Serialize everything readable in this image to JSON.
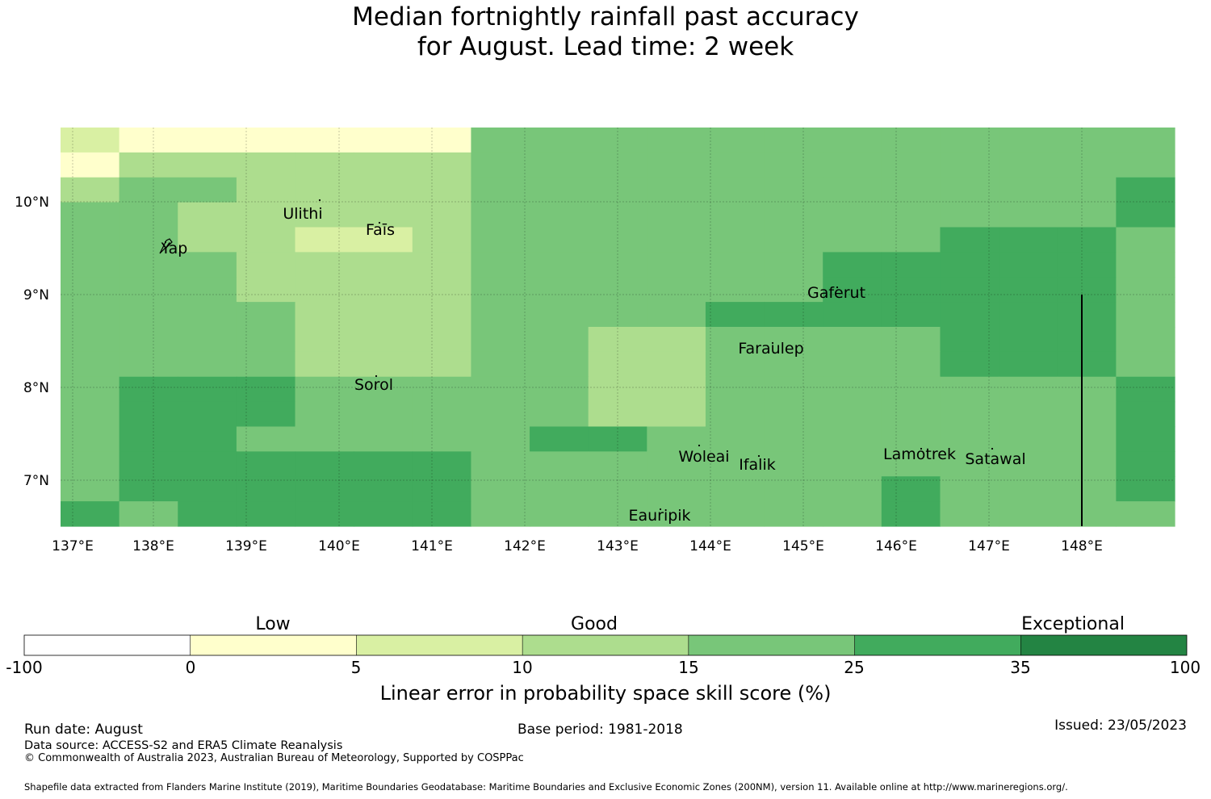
{
  "title_line1": "Median fortnightly rainfall past accuracy",
  "title_line2": "for August. Lead time: 2 week",
  "map": {
    "lon_ticks": [
      "137°E",
      "138°E",
      "139°E",
      "140°E",
      "141°E",
      "142°E",
      "143°E",
      "144°E",
      "145°E",
      "146°E",
      "147°E",
      "148°E"
    ],
    "lat_ticks": [
      "10°N",
      "9°N",
      "8°N",
      "7°N"
    ],
    "category_colors": [
      "#ffffff",
      "#ffffcc",
      "#d9f0a3",
      "#addd8e",
      "#78c679",
      "#41ab5d",
      "#238443"
    ],
    "grid_rows": [
      "2111111444444444444",
      "1333333444444444444",
      "3443333444444444445",
      "4433333444444444445",
      "4433223444444445554",
      "4443333444444555554",
      "4443333444444555554",
      "4444333444455555554",
      "4444333443344445554",
      "4444333443344445554",
      "4555444443344444445",
      "4555444443344444445",
      "4554444455444444445",
      "4555555444444444445",
      "4555555444444454445",
      "5455555444444454444"
    ],
    "places": [
      "Ulithi",
      "Faīs",
      "Yap",
      "Gaferut",
      "Faraulep",
      "Sorol",
      "Woleai",
      "Ifalik",
      "Lamotrek",
      "Satawal",
      "Eauripik"
    ]
  },
  "colorbar": {
    "category_labels": [
      "Low",
      "Good",
      "Exceptional"
    ],
    "tick_labels": [
      "-100",
      "0",
      "5",
      "10",
      "15",
      "25",
      "35",
      "100"
    ],
    "colors": [
      "#ffffff",
      "#ffffcc",
      "#d9f0a3",
      "#addd8e",
      "#78c679",
      "#41ab5d",
      "#238443"
    ],
    "axis_label": "Linear error in probability space skill score (%)"
  },
  "footer": {
    "run_date": "Run date: August",
    "base_period": "Base period: 1981-2018",
    "issued": "Issued: 23/05/2023",
    "data_source": "Data source: ACCESS-S2 and ERA5 Climate Reanalysis",
    "copyright": "© Commonwealth of Australia 2023, Australian Bureau of Meteorology, Supported by COSPPac",
    "shapefile": "Shapefile data extracted from Flanders Marine Institute (2019), Maritime Boundaries Geodatabase: Maritime Boundaries and Exclusive Economic Zones (200NM), version 11. Available online at http://www.marineregions.org/."
  }
}
